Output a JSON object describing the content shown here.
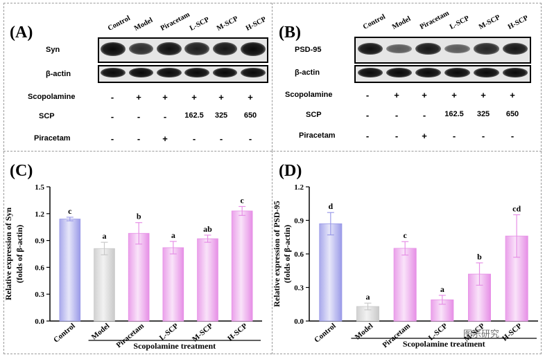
{
  "panels": {
    "A": "(A)",
    "B": "(B)",
    "C": "(C)",
    "D": "(D)"
  },
  "blotA": {
    "lanes": [
      "Control",
      "Model",
      "Piracetam",
      "L-SCP",
      "M-SCP",
      "H-SCP"
    ],
    "protein_label": "Syn",
    "actin_label": "β-actin",
    "protein_intensity": [
      1.0,
      0.75,
      0.95,
      0.85,
      0.9,
      1.0
    ]
  },
  "blotB": {
    "lanes": [
      "Control",
      "Model",
      "Piracetam",
      "L-SCP",
      "M-SCP",
      "H-SCP"
    ],
    "protein_label": "PSD-95",
    "actin_label": "β-actin",
    "protein_intensity": [
      0.95,
      0.45,
      0.9,
      0.45,
      0.8,
      0.9
    ]
  },
  "treatments": {
    "scopolamine_label": "Scopolamine",
    "scp_label": "SCP",
    "piracetam_label": "Piracetam",
    "scopolamine": [
      "-",
      "+",
      "+",
      "+",
      "+",
      "+"
    ],
    "scp": [
      "-",
      "-",
      "-",
      "162.5",
      "325",
      "650"
    ],
    "piracetam": [
      "-",
      "-",
      "+",
      "-",
      "-",
      "-"
    ]
  },
  "chart_data": [
    {
      "type": "bar",
      "id": "C",
      "categories": [
        "Control",
        "Model",
        "Piracetam",
        "L-SCP",
        "M-SCP",
        "H-SCP"
      ],
      "values": [
        1.14,
        0.81,
        0.98,
        0.82,
        0.92,
        1.23
      ],
      "errors": [
        0.02,
        0.07,
        0.12,
        0.07,
        0.04,
        0.05
      ],
      "significance": [
        "c",
        "a",
        "b",
        "a",
        "ab",
        "c"
      ],
      "ylabel_line1": "Relative expression of Syn",
      "ylabel_line2": "(folds of β-actin)",
      "xlabel": "Scopolamine treatment",
      "ylim": [
        0.0,
        1.5
      ],
      "yticks": [
        "0.0",
        "0.3",
        "0.6",
        "0.9",
        "1.2",
        "1.5"
      ],
      "colors": [
        "#9a9ae8",
        "#c9c9c9",
        "#e68fe6",
        "#e68fe6",
        "#e68fe6",
        "#e68fe6"
      ]
    },
    {
      "type": "bar",
      "id": "D",
      "categories": [
        "Control",
        "Model",
        "Piracetam",
        "L-SCP",
        "M-SCP",
        "H-SCP"
      ],
      "values": [
        0.87,
        0.13,
        0.65,
        0.19,
        0.42,
        0.76
      ],
      "errors": [
        0.1,
        0.03,
        0.06,
        0.04,
        0.1,
        0.19
      ],
      "significance": [
        "d",
        "a",
        "c",
        "a",
        "b",
        "cd"
      ],
      "ylabel_line1": "Relative expression of PSD-95",
      "ylabel_line2": "(folds of β-actin)",
      "xlabel": "Scopolamine treatment",
      "ylim": [
        0.0,
        1.2
      ],
      "yticks": [
        "0.0",
        "0.3",
        "0.6",
        "0.9",
        "1.2"
      ],
      "colors": [
        "#9a9ae8",
        "#c9c9c9",
        "#e68fe6",
        "#e68fe6",
        "#e68fe6",
        "#e68fe6"
      ]
    }
  ],
  "watermark": "图乐研究"
}
